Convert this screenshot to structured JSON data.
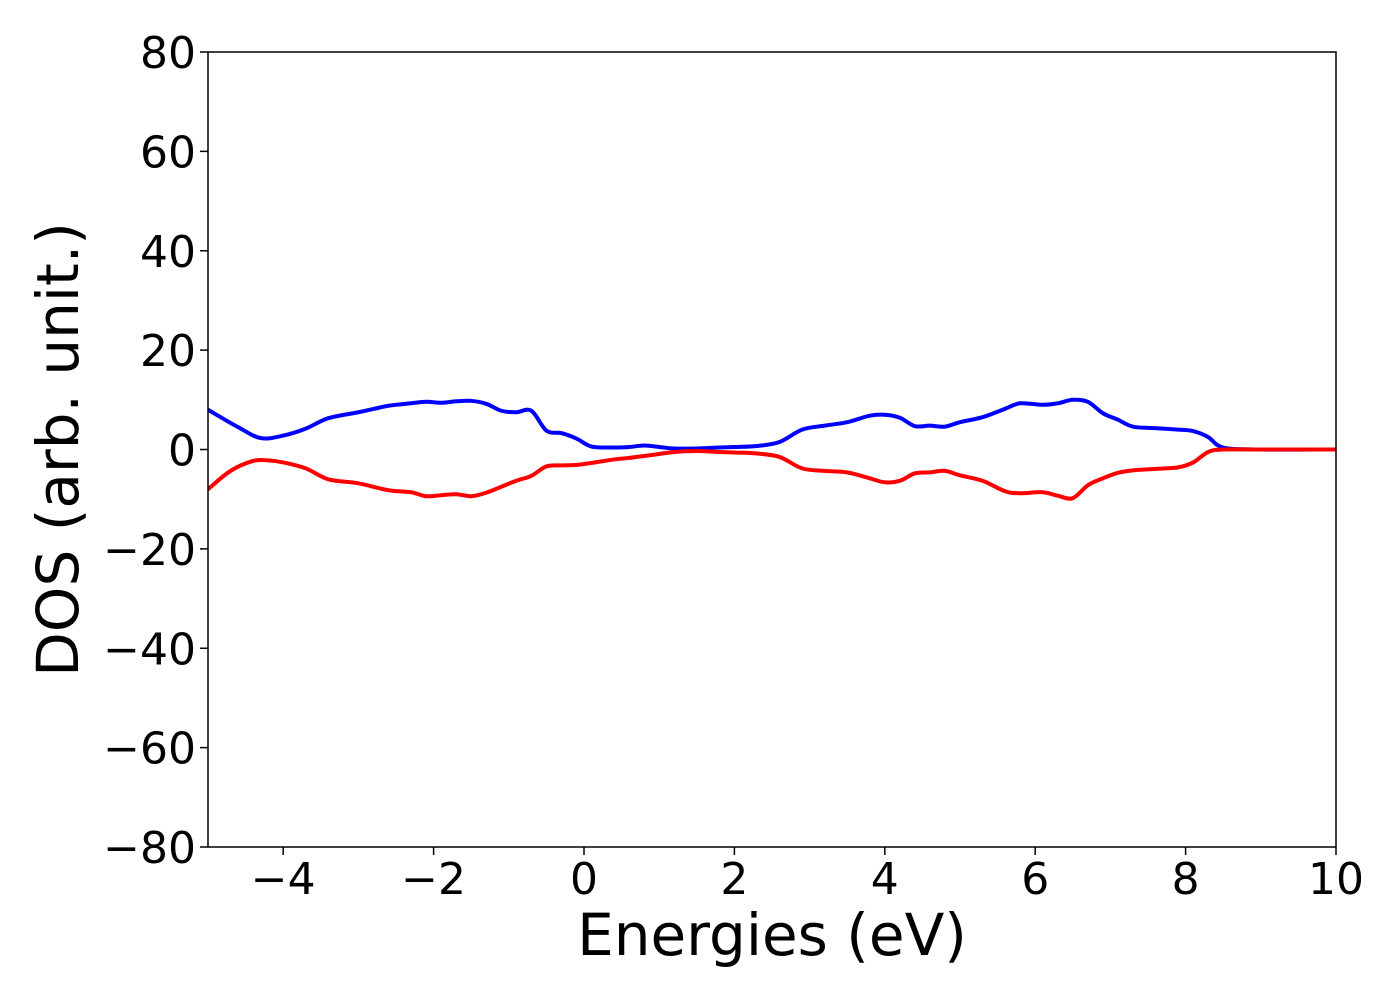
{
  "chart_data": {
    "type": "line",
    "title": "",
    "xlabel": "Energies (eV)",
    "ylabel": "DOS (arb. unit.)",
    "xlim": [
      -5,
      10
    ],
    "ylim": [
      -80,
      80
    ],
    "xticks": [
      -4,
      -2,
      0,
      2,
      4,
      6,
      8,
      10
    ],
    "yticks": [
      80,
      60,
      40,
      20,
      0,
      -20,
      -40,
      -60,
      -80
    ],
    "grid": false,
    "legend": "none",
    "series": [
      {
        "color": "#0000ff",
        "x": [
          -5.0,
          -4.6,
          -4.3,
          -4.0,
          -3.7,
          -3.4,
          -3.0,
          -2.6,
          -2.3,
          -2.1,
          -1.9,
          -1.7,
          -1.5,
          -1.3,
          -1.1,
          -0.9,
          -0.7,
          -0.5,
          -0.3,
          -0.1,
          0.1,
          0.4,
          0.6,
          0.8,
          1.0,
          1.2,
          1.5,
          1.8,
          2.0,
          2.3,
          2.6,
          2.9,
          3.2,
          3.5,
          3.8,
          4.0,
          4.2,
          4.4,
          4.6,
          4.8,
          5.0,
          5.3,
          5.6,
          5.8,
          6.1,
          6.3,
          6.5,
          6.7,
          6.9,
          7.1,
          7.3,
          7.6,
          7.9,
          8.1,
          8.3,
          8.5,
          9.0,
          10.0
        ],
        "y": [
          8.0,
          4.5,
          2.3,
          2.8,
          4.2,
          6.3,
          7.5,
          8.8,
          9.3,
          9.6,
          9.4,
          9.7,
          9.8,
          9.2,
          7.8,
          7.5,
          7.8,
          3.8,
          3.3,
          2.2,
          0.6,
          0.4,
          0.5,
          0.8,
          0.5,
          0.2,
          0.2,
          0.4,
          0.5,
          0.7,
          1.5,
          4.0,
          4.8,
          5.5,
          6.8,
          7.0,
          6.4,
          4.7,
          4.8,
          4.6,
          5.5,
          6.5,
          8.2,
          9.3,
          9.0,
          9.3,
          10.0,
          9.6,
          7.3,
          6.0,
          4.6,
          4.3,
          4.0,
          3.7,
          2.5,
          0.4,
          0.0,
          0.0
        ]
      },
      {
        "color": "#ff0000",
        "x": [
          -5.0,
          -4.7,
          -4.4,
          -4.2,
          -4.0,
          -3.7,
          -3.4,
          -3.0,
          -2.6,
          -2.3,
          -2.1,
          -1.9,
          -1.7,
          -1.5,
          -1.3,
          -1.1,
          -0.9,
          -0.7,
          -0.5,
          -0.3,
          -0.1,
          0.1,
          0.4,
          0.6,
          0.8,
          1.0,
          1.2,
          1.5,
          1.8,
          2.0,
          2.3,
          2.6,
          2.9,
          3.2,
          3.5,
          3.8,
          4.0,
          4.2,
          4.4,
          4.6,
          4.8,
          5.0,
          5.3,
          5.6,
          5.8,
          6.1,
          6.3,
          6.5,
          6.7,
          6.9,
          7.1,
          7.3,
          7.6,
          7.9,
          8.1,
          8.3,
          8.5,
          9.0,
          10.0
        ],
        "y": [
          -8.0,
          -4.3,
          -2.3,
          -2.2,
          -2.6,
          -3.8,
          -6.0,
          -6.8,
          -8.2,
          -8.6,
          -9.4,
          -9.2,
          -9.0,
          -9.4,
          -8.7,
          -7.5,
          -6.3,
          -5.3,
          -3.4,
          -3.2,
          -3.1,
          -2.7,
          -2.0,
          -1.7,
          -1.3,
          -0.9,
          -0.5,
          -0.3,
          -0.5,
          -0.6,
          -0.8,
          -1.5,
          -3.8,
          -4.3,
          -4.6,
          -5.8,
          -6.6,
          -6.3,
          -4.8,
          -4.6,
          -4.3,
          -5.2,
          -6.3,
          -8.4,
          -8.8,
          -8.6,
          -9.3,
          -9.8,
          -7.2,
          -5.8,
          -4.7,
          -4.2,
          -3.9,
          -3.6,
          -2.6,
          -0.5,
          0.0,
          0.0,
          0.0
        ]
      }
    ]
  }
}
